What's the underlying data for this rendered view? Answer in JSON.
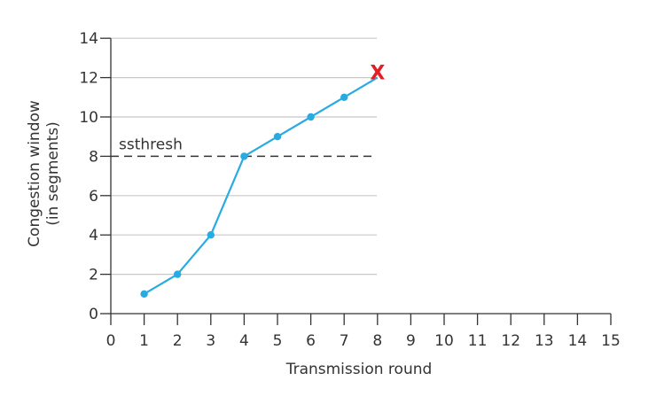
{
  "chart_data": {
    "type": "line",
    "xlabel": "Transmission round",
    "ylabel_lines": [
      "Congestion window",
      "(in segments)"
    ],
    "xlim": [
      0,
      15
    ],
    "ylim": [
      0,
      14
    ],
    "x_ticks": [
      0,
      1,
      2,
      3,
      4,
      5,
      6,
      7,
      8,
      9,
      10,
      11,
      12,
      13,
      14,
      15
    ],
    "y_ticks": [
      0,
      2,
      4,
      6,
      8,
      10,
      12,
      14
    ],
    "grid": "horizontal",
    "series": [
      {
        "x": [
          1,
          2,
          3,
          4,
          5,
          6,
          7,
          8
        ],
        "y": [
          1,
          2,
          4,
          8,
          9,
          10,
          11,
          12
        ],
        "color": "#29abe2"
      }
    ],
    "threshold": {
      "label": "ssthresh",
      "value": 8,
      "style": "dashed",
      "color": "#333333"
    },
    "end_marker": {
      "label": "X",
      "color": "#e31e24"
    }
  }
}
